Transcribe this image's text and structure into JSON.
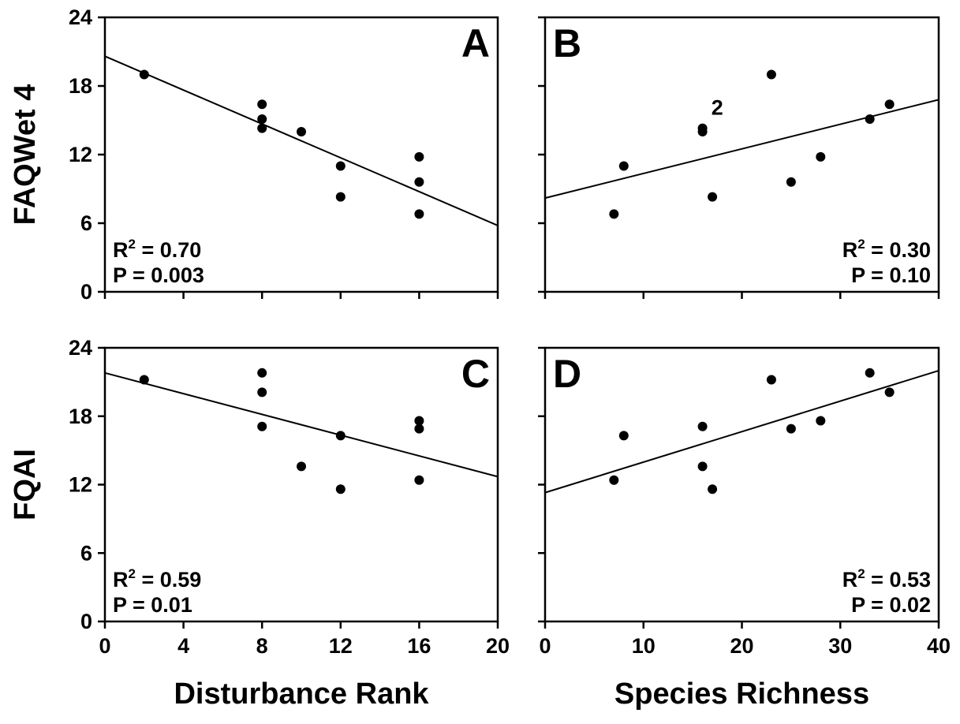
{
  "chart_data": [
    {
      "panel": "A",
      "type": "scatter",
      "xlabel": "",
      "ylabel": "FAQWet 4",
      "xlim": [
        0,
        20
      ],
      "ylim": [
        0,
        24
      ],
      "xticks": [
        "0",
        "4",
        "8",
        "12",
        "16",
        "20"
      ],
      "yticks": [
        "0",
        "6",
        "12",
        "18",
        "24"
      ],
      "x_tick_labels_shown": false,
      "y_tick_labels_shown": true,
      "points": [
        {
          "x": 2,
          "y": 19.0
        },
        {
          "x": 8,
          "y": 16.4
        },
        {
          "x": 8,
          "y": 15.1
        },
        {
          "x": 8,
          "y": 14.3
        },
        {
          "x": 10,
          "y": 14.0
        },
        {
          "x": 12,
          "y": 11.0
        },
        {
          "x": 12,
          "y": 8.3
        },
        {
          "x": 16,
          "y": 11.8
        },
        {
          "x": 16,
          "y": 9.6
        },
        {
          "x": 16,
          "y": 6.8
        }
      ],
      "fit": {
        "x0": 0,
        "y0": 20.6,
        "x1": 20,
        "y1": 5.8
      },
      "stats": {
        "r2_prefix": "R",
        "r2_sup": "2",
        "r2_value": " = 0.70",
        "p_text": "P = 0.003"
      },
      "stats_position": "bottom-left",
      "annotations": []
    },
    {
      "panel": "B",
      "type": "scatter",
      "xlabel": "",
      "ylabel": "",
      "xlim": [
        0,
        40
      ],
      "ylim": [
        0,
        24
      ],
      "xticks": [
        "0",
        "10",
        "20",
        "30",
        "40"
      ],
      "yticks": [
        "0",
        "6",
        "12",
        "18",
        "24"
      ],
      "x_tick_labels_shown": false,
      "y_tick_labels_shown": false,
      "points": [
        {
          "x": 7,
          "y": 6.8
        },
        {
          "x": 8,
          "y": 11.0
        },
        {
          "x": 16,
          "y": 14.3
        },
        {
          "x": 16,
          "y": 14.0
        },
        {
          "x": 17,
          "y": 8.3
        },
        {
          "x": 23,
          "y": 19.0
        },
        {
          "x": 25,
          "y": 9.6
        },
        {
          "x": 28,
          "y": 11.8
        },
        {
          "x": 33,
          "y": 15.1
        },
        {
          "x": 35,
          "y": 16.4
        }
      ],
      "fit": {
        "x0": 0,
        "y0": 8.2,
        "x1": 40,
        "y1": 16.8
      },
      "stats": {
        "r2_prefix": "R",
        "r2_sup": "2",
        "r2_value": " = 0.30",
        "p_text": "P = 0.10"
      },
      "stats_position": "bottom-right",
      "annotations": [
        {
          "text": "2",
          "x": 17.5,
          "y": 15.5
        }
      ]
    },
    {
      "panel": "C",
      "type": "scatter",
      "xlabel": "Disturbance Rank",
      "ylabel": "FQAI",
      "xlim": [
        0,
        20
      ],
      "ylim": [
        0,
        24
      ],
      "xticks": [
        "0",
        "4",
        "8",
        "12",
        "16",
        "20"
      ],
      "yticks": [
        "0",
        "6",
        "12",
        "18",
        "24"
      ],
      "x_tick_labels_shown": true,
      "y_tick_labels_shown": true,
      "points": [
        {
          "x": 2,
          "y": 21.2
        },
        {
          "x": 8,
          "y": 21.8
        },
        {
          "x": 8,
          "y": 20.1
        },
        {
          "x": 8,
          "y": 17.1
        },
        {
          "x": 10,
          "y": 13.6
        },
        {
          "x": 12,
          "y": 16.3
        },
        {
          "x": 12,
          "y": 11.6
        },
        {
          "x": 16,
          "y": 17.6
        },
        {
          "x": 16,
          "y": 16.9
        },
        {
          "x": 16,
          "y": 12.4
        }
      ],
      "fit": {
        "x0": 0,
        "y0": 21.8,
        "x1": 20,
        "y1": 12.7
      },
      "stats": {
        "r2_prefix": "R",
        "r2_sup": "2",
        "r2_value": " = 0.59",
        "p_text": "P = 0.01"
      },
      "stats_position": "bottom-left",
      "annotations": []
    },
    {
      "panel": "D",
      "type": "scatter",
      "xlabel": "Species Richness",
      "ylabel": "",
      "xlim": [
        0,
        40
      ],
      "ylim": [
        0,
        24
      ],
      "xticks": [
        "0",
        "10",
        "20",
        "30",
        "40"
      ],
      "yticks": [
        "0",
        "6",
        "12",
        "18",
        "24"
      ],
      "x_tick_labels_shown": true,
      "y_tick_labels_shown": false,
      "points": [
        {
          "x": 7,
          "y": 12.4
        },
        {
          "x": 8,
          "y": 16.3
        },
        {
          "x": 16,
          "y": 17.1
        },
        {
          "x": 16,
          "y": 13.6
        },
        {
          "x": 17,
          "y": 11.6
        },
        {
          "x": 23,
          "y": 21.2
        },
        {
          "x": 25,
          "y": 16.9
        },
        {
          "x": 28,
          "y": 17.6
        },
        {
          "x": 33,
          "y": 21.8
        },
        {
          "x": 35,
          "y": 20.1
        }
      ],
      "fit": {
        "x0": 0,
        "y0": 11.3,
        "x1": 40,
        "y1": 22.0
      },
      "stats": {
        "r2_prefix": "R",
        "r2_sup": "2",
        "r2_value": " = 0.53",
        "p_text": "P = 0.02"
      },
      "stats_position": "bottom-right",
      "annotations": []
    }
  ]
}
